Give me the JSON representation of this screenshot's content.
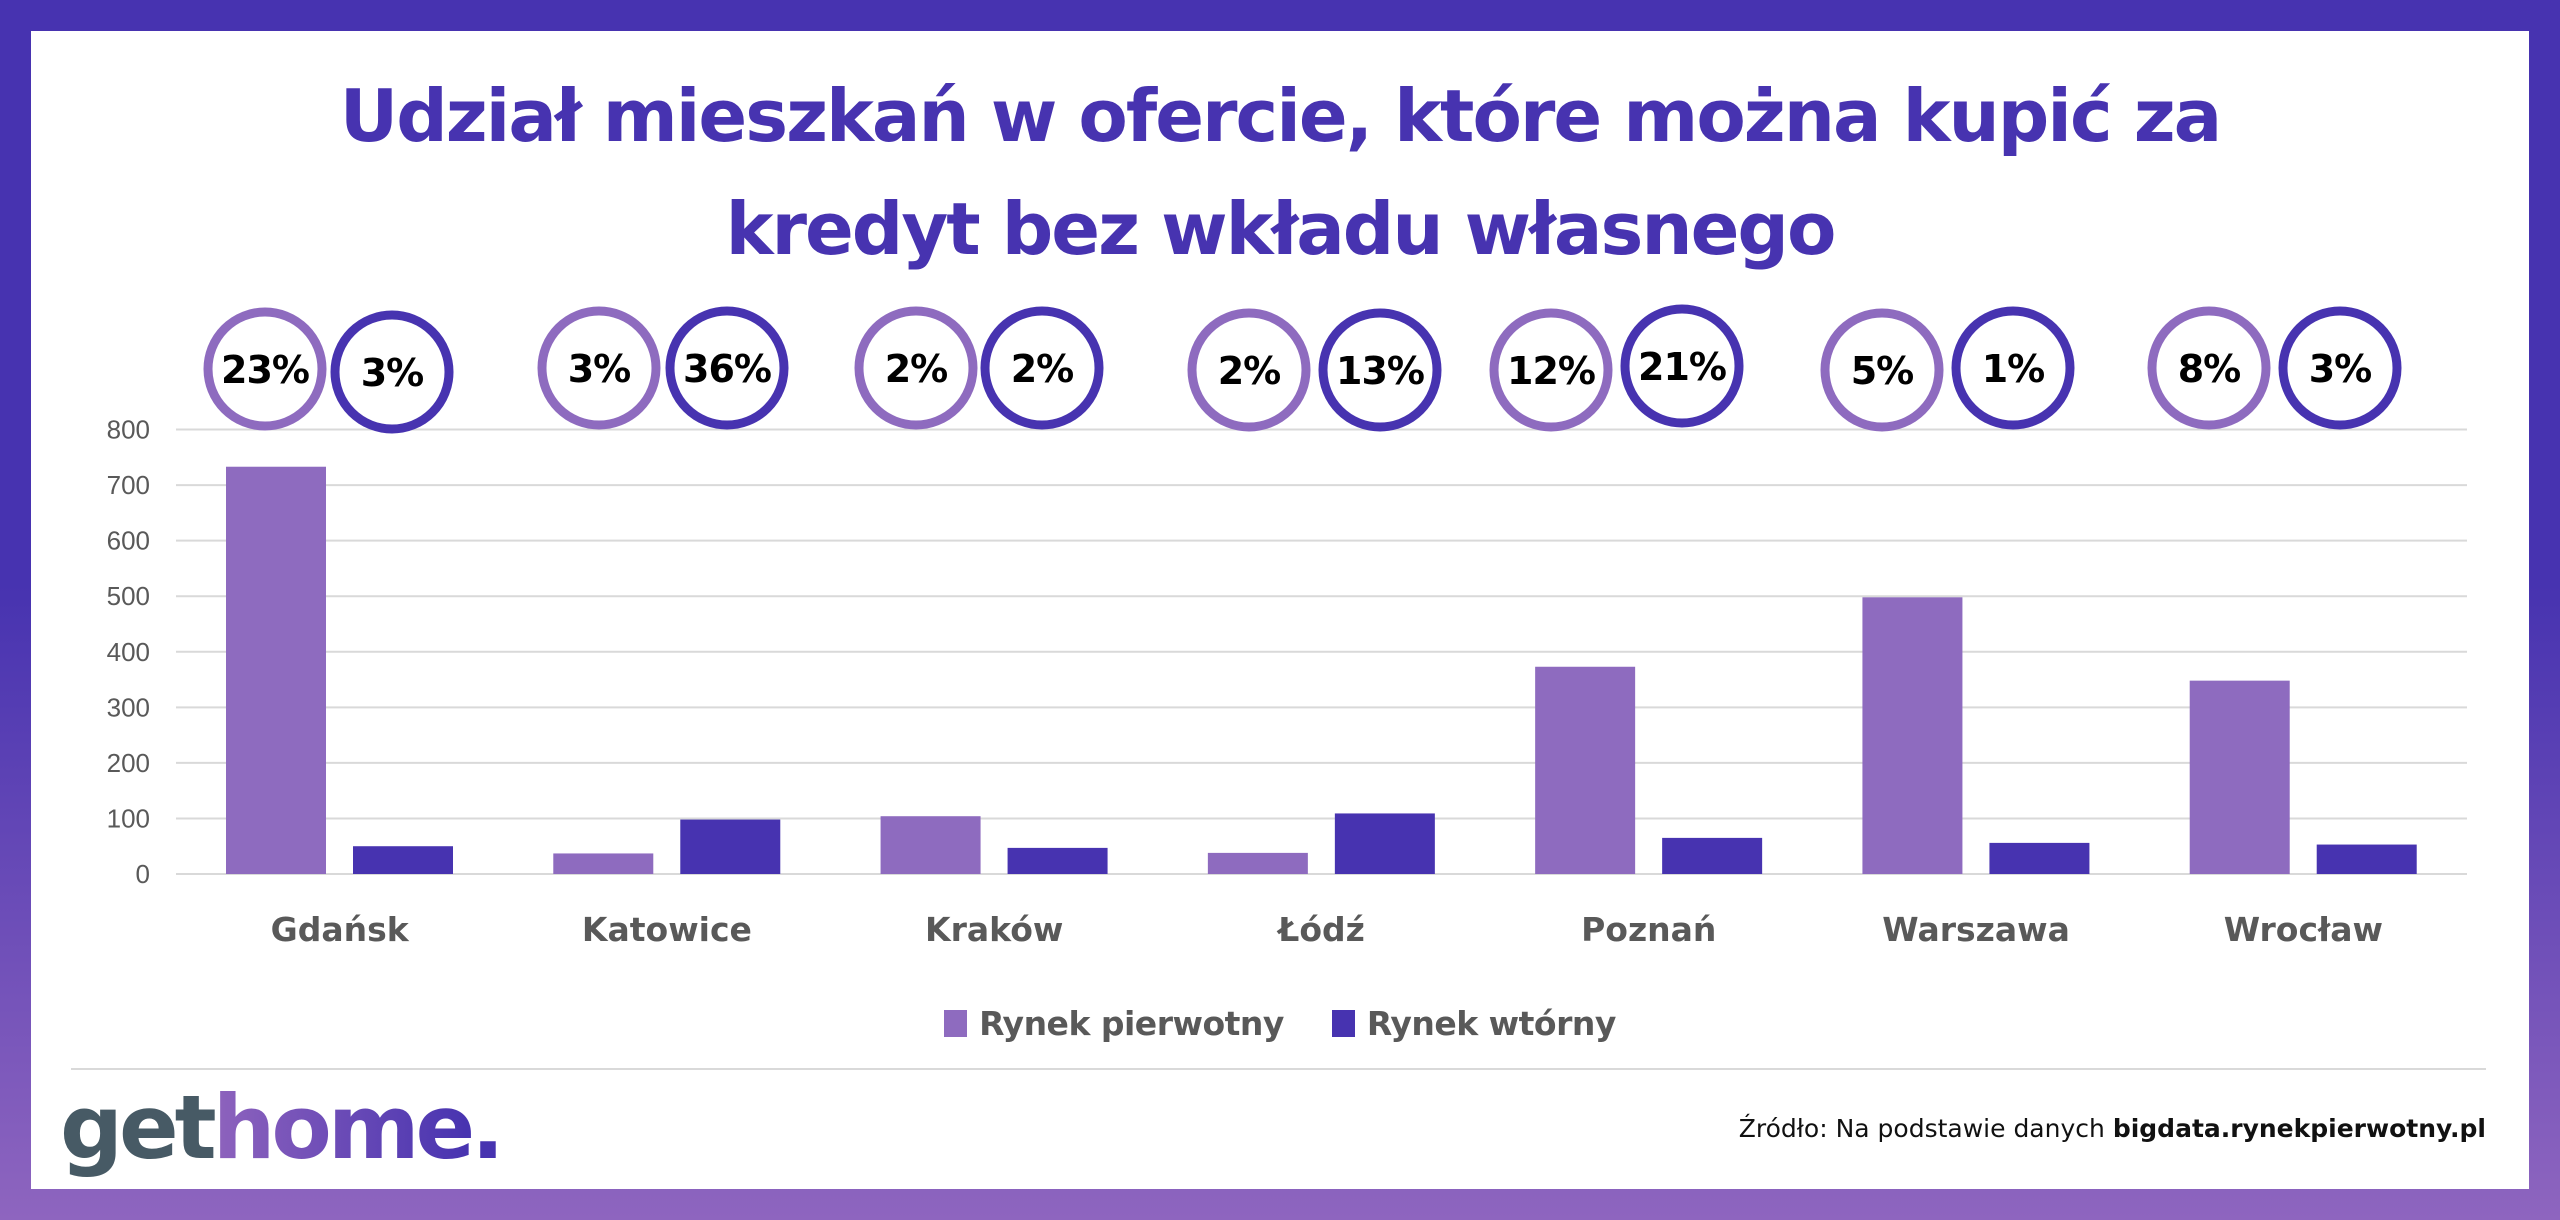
{
  "colors": {
    "primary_market": "#8e6bbf",
    "secondary_market": "#4733b0",
    "frame_top": "#4733b0",
    "frame_bottom": "#8e65bf",
    "grid": "#d9d9d9",
    "axis_text": "#595959"
  },
  "header": {
    "title_line1": "Udział mieszkań w ofercie, które można kupić za",
    "title_line2": "kredyt bez wkładu własnego"
  },
  "chart_data": {
    "type": "bar",
    "title": "Udział mieszkań w ofercie, które można kupić za kredyt bez wkładu własnego",
    "xlabel": "",
    "ylabel": "",
    "ylim": [
      0,
      800
    ],
    "yticks": [
      0,
      100,
      200,
      300,
      400,
      500,
      600,
      700,
      800
    ],
    "grid": true,
    "legend_position": "bottom",
    "categories": [
      "Gdańsk",
      "Katowice",
      "Kraków",
      "Łódź",
      "Poznań",
      "Warszawa",
      "Wrocław"
    ],
    "series": [
      {
        "name": "Rynek pierwotny",
        "values": [
          733,
          37,
          104,
          38,
          373,
          498,
          348
        ],
        "share_labels": [
          "23%",
          "3%",
          "2%",
          "2%",
          "12%",
          "5%",
          "8%"
        ]
      },
      {
        "name": "Rynek wtórny",
        "values": [
          50,
          98,
          47,
          109,
          65,
          56,
          53
        ],
        "share_labels": [
          "3%",
          "36%",
          "2%",
          "13%",
          "21%",
          "1%",
          "3%"
        ]
      }
    ]
  },
  "legend": {
    "items": [
      {
        "label": "Rynek pierwotny"
      },
      {
        "label": "Rynek wtórny"
      }
    ]
  },
  "footer": {
    "logo_get": "get",
    "logo_home": "home",
    "logo_dot": ".",
    "source_prefix": "Źródło: Na podstawie danych ",
    "source_bold": "bigdata.rynekpierwotny.pl"
  }
}
